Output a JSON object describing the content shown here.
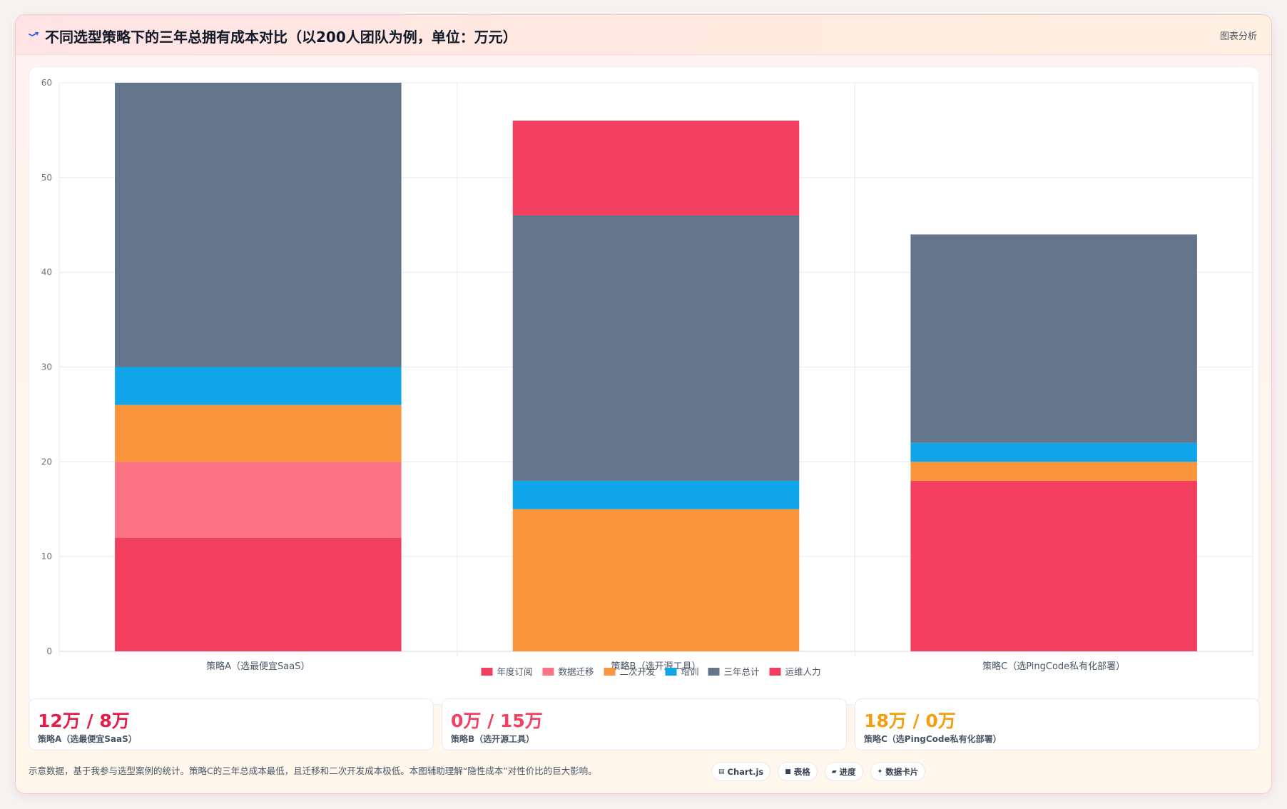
{
  "header": {
    "title": "不同选型策略下的三年总拥有成本对比（以200人团队为例，单位：万元）",
    "action_label": "图表分析",
    "icon": "chart-trend-icon",
    "accent_color": "#2563eb"
  },
  "chart_data": {
    "type": "bar",
    "stacked": true,
    "categories": [
      "策略A（选最便宜SaaS）",
      "策略B（选开源工具）",
      "策略C（选PingCode私有化部署）"
    ],
    "series": [
      {
        "name": "年度订阅",
        "color": "#f23f5f",
        "values": [
          12,
          0,
          18
        ]
      },
      {
        "name": "数据迁移",
        "color": "#fd7386",
        "values": [
          8,
          0,
          0
        ]
      },
      {
        "name": "二次开发",
        "color": "#f9953d",
        "values": [
          6,
          15,
          2
        ]
      },
      {
        "name": "培训",
        "color": "#10a5e8",
        "values": [
          4,
          3,
          2
        ]
      },
      {
        "name": "三年总计",
        "color": "#64748b",
        "values": [
          30,
          28,
          22
        ]
      },
      {
        "name": "运维人力",
        "color": "#f23f5f",
        "values": [
          0,
          10,
          0
        ]
      }
    ],
    "ylim": [
      0,
      60
    ],
    "yticks": [
      0,
      10,
      20,
      30,
      40,
      50,
      60
    ],
    "xlabel": "",
    "ylabel": "",
    "grid": true,
    "legend_position": "bottom"
  },
  "stats": [
    {
      "value": "12万 / 8万",
      "label": "策略A（选最便宜SaaS）",
      "color": "#e11d48"
    },
    {
      "value": "0万 / 15万",
      "label": "策略B（选开源工具）",
      "color": "#f43f5e"
    },
    {
      "value": "18万 / 0万",
      "label": "策略C（选PingCode私有化部署）",
      "color": "#f59e0b"
    }
  ],
  "footer": {
    "note": "示意数据，基于我参与选型案例的统计。策略C的三年总成本最低，且迁移和二次开发成本极低。本图辅助理解“隐性成本”对性价比的巨大影响。",
    "pills": [
      {
        "icon": "▤",
        "label": "Chart.js"
      },
      {
        "icon": "■",
        "label": "表格"
      },
      {
        "icon": "▰",
        "label": "进度"
      },
      {
        "icon": "✦",
        "label": "数据卡片"
      }
    ]
  }
}
